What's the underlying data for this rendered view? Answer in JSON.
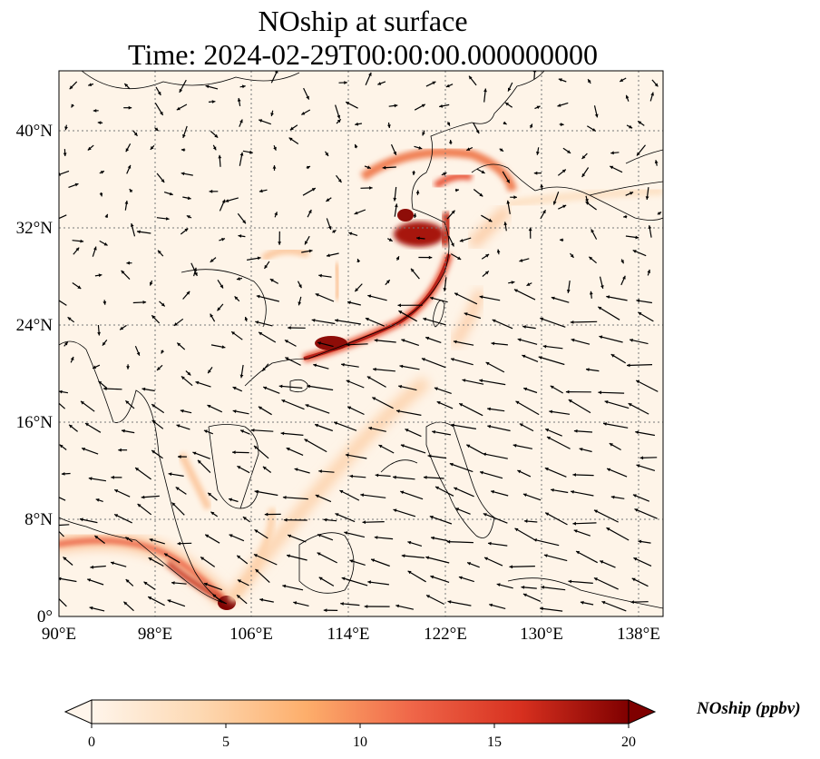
{
  "title": {
    "line1": "NOship at surface",
    "line2": "Time: 2024-02-29T00:00:00.000000000"
  },
  "map": {
    "lon_ticks": [
      "90°E",
      "98°E",
      "106°E",
      "114°E",
      "122°E",
      "130°E",
      "138°E"
    ],
    "lat_ticks": [
      "0°",
      "8°N",
      "16°N",
      "24°N",
      "32°N",
      "40°N"
    ],
    "lon_range": [
      90,
      139.5
    ],
    "lat_range": [
      0,
      45
    ],
    "gridlines": true,
    "coastlines": true,
    "wind_vectors": true
  },
  "colorbar": {
    "label": "NOship (ppbv)",
    "ticks": [
      "0",
      "5",
      "10",
      "15",
      "20"
    ],
    "range": [
      0,
      20
    ],
    "extend": "both",
    "colormap": [
      "#fff5eb",
      "#fdd9b3",
      "#fdae6b",
      "#f16913",
      "#d7301f",
      "#7f0000"
    ]
  }
}
